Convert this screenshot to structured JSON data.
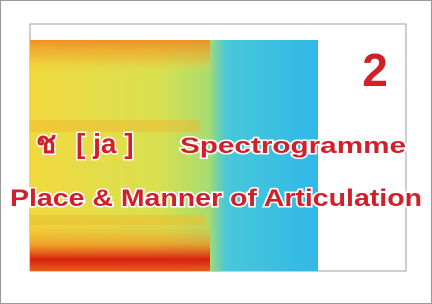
{
  "badge": "2",
  "heading": {
    "symbol": "ช",
    "phoneme": "[ ja ]",
    "word": "Spectrogramme"
  },
  "subtitle": "Place & Manner of Articulation"
}
